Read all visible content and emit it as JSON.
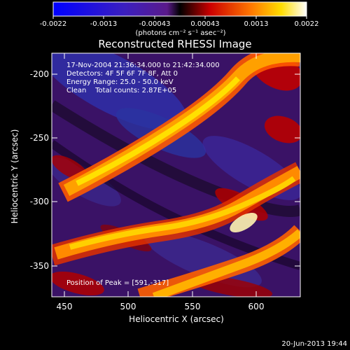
{
  "colorbar": {
    "ticks": [
      "-0.0022",
      "-0.0013",
      "-0.00043",
      "0.00043",
      "0.0013",
      "0.0022"
    ],
    "min": -0.0022,
    "max": 0.0022
  },
  "chart_data": {
    "type": "heatmap",
    "title": "Reconstructed RHESSI Image",
    "xlabel": "Heliocentric X (arcsec)",
    "ylabel": "Heliocentric Y (arcsec)",
    "xlim": [
      438,
      632
    ],
    "ylim": [
      -375,
      -180
    ],
    "xticks": [
      "450",
      "500",
      "550",
      "600"
    ],
    "yticks": [
      "-200",
      "-250",
      "-300",
      "-350"
    ],
    "colorbar_unit": "(photons cm⁻² s⁻¹ asec⁻²)",
    "info": {
      "line1": "17-Nov-2004 21:36:34.000 to 21:42:34.000",
      "line2": "Detectors: 4F 5F 6F 7F 8F, Att 0",
      "line3": "Energy Range: 25.0 - 50.0 keV",
      "line4": "Clean    Total counts: 2.87E+05"
    },
    "peak": "Position of Peak = [591,-317]"
  },
  "footer": {
    "timestamp": "20-Jun-2013 19:44"
  }
}
